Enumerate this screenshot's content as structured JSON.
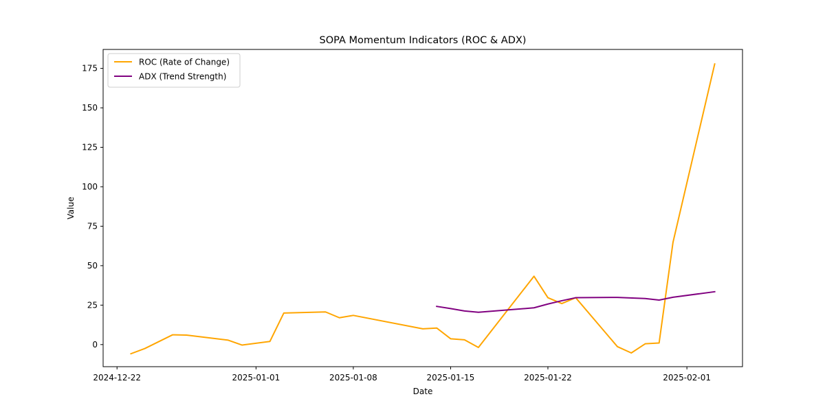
{
  "chart_data": {
    "type": "line",
    "title": "SOPA Momentum Indicators (ROC & ADX)",
    "xlabel": "Date",
    "ylabel": "Value",
    "xlim": [
      "2024-12-21",
      "2025-02-05"
    ],
    "ylim": [
      -14,
      187
    ],
    "x_ticks": [
      "2024-12-22",
      "2025-01-01",
      "2025-01-08",
      "2025-01-15",
      "2025-01-22",
      "2025-02-01"
    ],
    "y_ticks": [
      0,
      25,
      50,
      75,
      100,
      125,
      150,
      175
    ],
    "grid": false,
    "legend_position": "top-left",
    "series": [
      {
        "name": "ROC (Rate of Change)",
        "color": "#FFA500",
        "points": [
          [
            "2024-12-23",
            -5.8
          ],
          [
            "2024-12-24",
            -2.5
          ],
          [
            "2024-12-26",
            6.2
          ],
          [
            "2024-12-27",
            6.0
          ],
          [
            "2024-12-30",
            2.8
          ],
          [
            "2024-12-31",
            -0.3
          ],
          [
            "2025-01-02",
            2.0
          ],
          [
            "2025-01-03",
            20.0
          ],
          [
            "2025-01-06",
            20.7
          ],
          [
            "2025-01-07",
            17.0
          ],
          [
            "2025-01-08",
            18.5
          ],
          [
            "2025-01-13",
            10.0
          ],
          [
            "2025-01-14",
            10.5
          ],
          [
            "2025-01-15",
            3.7
          ],
          [
            "2025-01-16",
            3.0
          ],
          [
            "2025-01-17",
            -1.8
          ],
          [
            "2025-01-21",
            43.3
          ],
          [
            "2025-01-22",
            29.7
          ],
          [
            "2025-01-23",
            26.0
          ],
          [
            "2025-01-24",
            29.7
          ],
          [
            "2025-01-27",
            -1.3
          ],
          [
            "2025-01-28",
            -5.3
          ],
          [
            "2025-01-29",
            0.5
          ],
          [
            "2025-01-30",
            1.0
          ],
          [
            "2025-01-31",
            64.8
          ],
          [
            "2025-02-03",
            177.8
          ]
        ]
      },
      {
        "name": "ADX (Trend Strength)",
        "color": "#800080",
        "points": [
          [
            "2025-01-14",
            24.2
          ],
          [
            "2025-01-15",
            22.8
          ],
          [
            "2025-01-16",
            21.3
          ],
          [
            "2025-01-17",
            20.5
          ],
          [
            "2025-01-21",
            23.3
          ],
          [
            "2025-01-22",
            25.7
          ],
          [
            "2025-01-23",
            27.8
          ],
          [
            "2025-01-24",
            29.7
          ],
          [
            "2025-01-27",
            29.9
          ],
          [
            "2025-01-29",
            29.2
          ],
          [
            "2025-01-30",
            28.2
          ],
          [
            "2025-01-31",
            30.0
          ],
          [
            "2025-02-03",
            33.5
          ]
        ]
      }
    ]
  }
}
